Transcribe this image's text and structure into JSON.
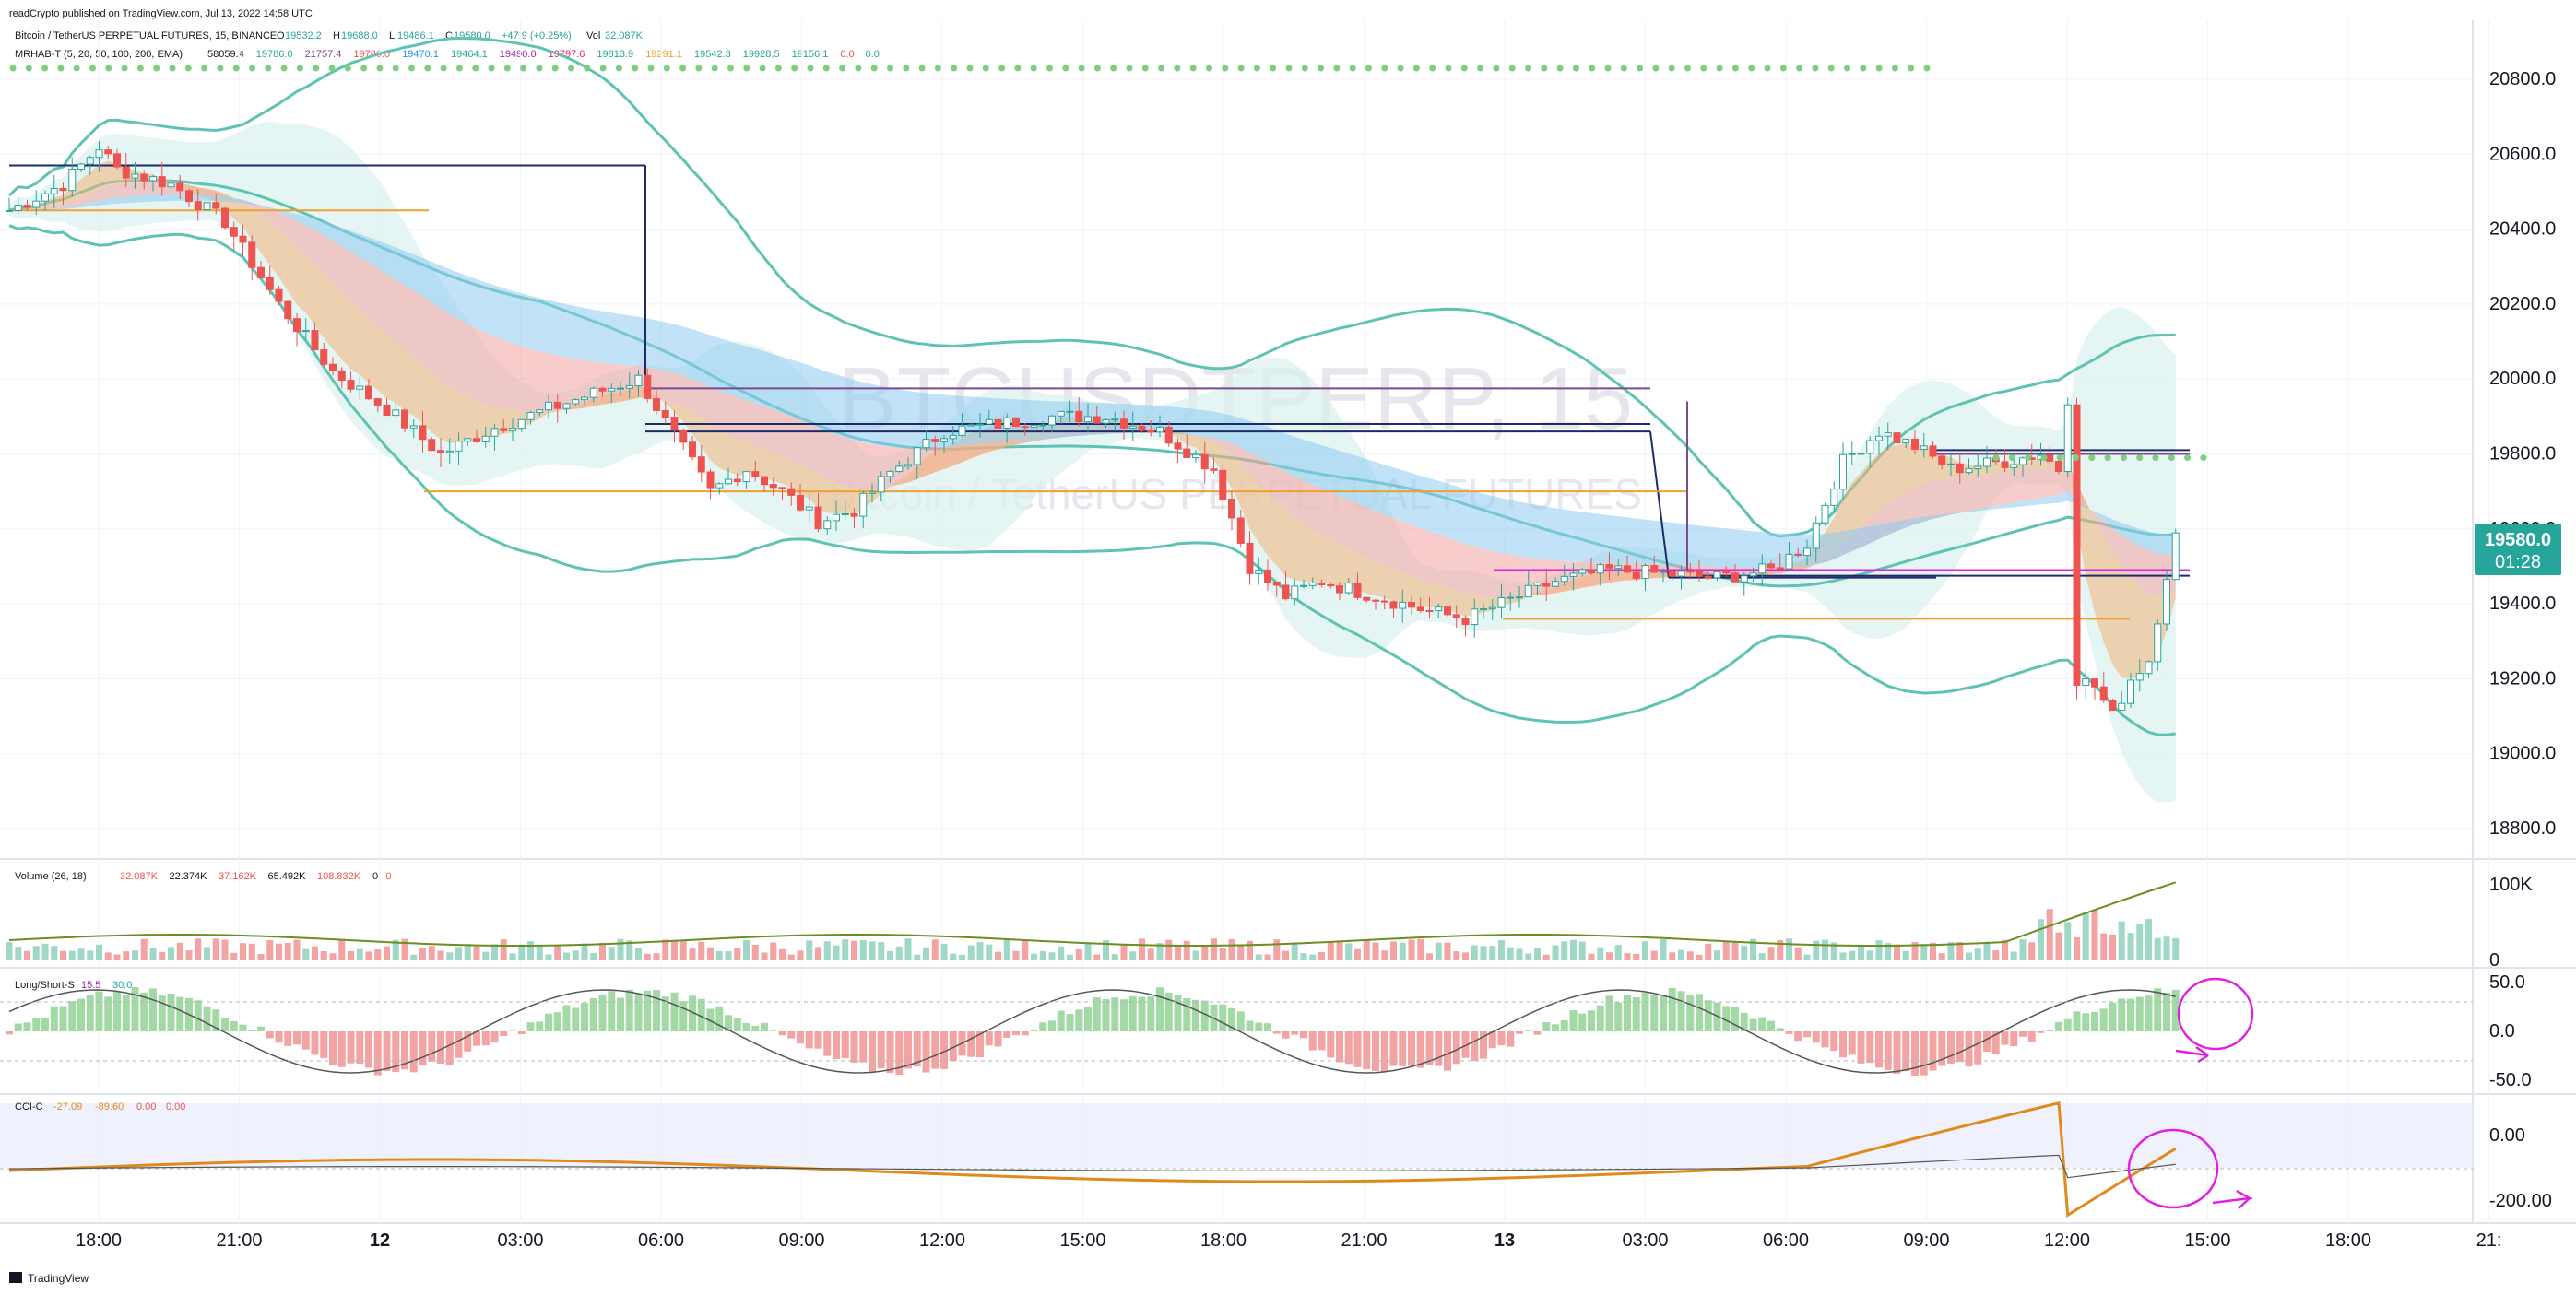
{
  "header": {
    "published": "readCrypto published on TradingView.com, Jul 13, 2022 14:58 UTC",
    "symbol_line": "Bitcoin / TetherUS PERPETUAL FUTURES, 15, BINANCE",
    "ohlc": [
      {
        "k": "O",
        "v": "19532.2"
      },
      {
        "k": "H",
        "v": "19688.0"
      },
      {
        "k": "L",
        "v": "19486.1"
      },
      {
        "k": "C",
        "v": "19580.0"
      }
    ],
    "change": "+47.9 (+0.25%)",
    "vol_label": "Vol",
    "vol_value": "32.087K",
    "ema_label": "MRHAB-T (5, 20, 50, 100, 200, EMA)",
    "ema_values": [
      "58059.4",
      "19786.0",
      "21757.4",
      "19786.0",
      "19470.1",
      "19464.1",
      "19490.0",
      "19797.6",
      "19813.9",
      "19291.1",
      "19542.3",
      "19928.5",
      "19156.1",
      "0.0",
      "0.0"
    ]
  },
  "watermark": {
    "symbol": "BTCUSDTPERP, 15",
    "name": "Bitcoin / TetherUS PERPETUAL FUTURES"
  },
  "colors": {
    "up": "#26a69a",
    "down": "#ef5350",
    "band": "#5fc3b4",
    "band_fill": "#d8f1ee",
    "ribbon_red": "#f4a3a3",
    "ribbon_blue": "#8ecbf0",
    "ribbon_cyan": "#7fdde0",
    "ribbon_orange": "#f2b27a",
    "green_dots": "#7dcf7d",
    "purple": "#7b4a8f",
    "navy": "#1f2a6b",
    "orange": "#f0a030",
    "magenta": "#e020e0",
    "price_label": "#26a69a",
    "grid": "#f0f3fa",
    "axis_text": "#131722"
  },
  "price_axis": {
    "ticks": [
      "20800.0",
      "20600.0",
      "20400.0",
      "20200.0",
      "20000.0",
      "19800.0",
      "19600.0",
      "19400.0",
      "19200.0",
      "19000.0",
      "18800.0"
    ],
    "last_price": "19580.0",
    "countdown": "01:28"
  },
  "volume_pane": {
    "label": "Volume (26, 18)",
    "values": [
      "32.087K",
      "22.374K",
      "37.162K",
      "65.492K",
      "108.832K",
      "0",
      "0"
    ],
    "ticks": [
      "100K",
      "0"
    ]
  },
  "ls_pane": {
    "label": "Long/Short-S",
    "values": [
      "15.5",
      "30.0"
    ],
    "ticks": [
      "50.0",
      "0.0",
      "-50.0"
    ]
  },
  "cci_pane": {
    "label": "CCI-C",
    "values": [
      "-27.09",
      "-89.60",
      "0.00",
      "0.00"
    ],
    "ticks": [
      "0.00",
      "-200.00"
    ]
  },
  "time_axis": {
    "labels": [
      "18:00",
      "21:00",
      "12",
      "03:00",
      "06:00",
      "09:00",
      "12:00",
      "15:00",
      "18:00",
      "21:00",
      "13",
      "03:00",
      "06:00",
      "09:00",
      "12:00",
      "15:00",
      "18:00",
      "21:"
    ],
    "bold": [
      "12",
      "13"
    ]
  },
  "footer": {
    "brand": "TradingView"
  },
  "chart_data": {
    "type": "candlestick",
    "title": "Bitcoin / TetherUS PERPETUAL FUTURES, 15, BINANCE",
    "ylim": [
      18700,
      20900
    ],
    "xlabel": "",
    "ylabel": "",
    "anchors": [
      {
        "t": 0,
        "p": 20450
      },
      {
        "t": 6,
        "p": 20520
      },
      {
        "t": 10,
        "p": 20620
      },
      {
        "t": 12,
        "p": 20560
      },
      {
        "t": 18,
        "p": 20520
      },
      {
        "t": 24,
        "p": 20420
      },
      {
        "t": 30,
        "p": 20200
      },
      {
        "t": 36,
        "p": 20020
      },
      {
        "t": 42,
        "p": 19920
      },
      {
        "t": 48,
        "p": 19800
      },
      {
        "t": 54,
        "p": 19870
      },
      {
        "t": 60,
        "p": 19920
      },
      {
        "t": 66,
        "p": 19970
      },
      {
        "t": 70,
        "p": 20000
      },
      {
        "t": 74,
        "p": 19850
      },
      {
        "t": 78,
        "p": 19700
      },
      {
        "t": 82,
        "p": 19760
      },
      {
        "t": 86,
        "p": 19700
      },
      {
        "t": 90,
        "p": 19620
      },
      {
        "t": 94,
        "p": 19650
      },
      {
        "t": 98,
        "p": 19750
      },
      {
        "t": 104,
        "p": 19860
      },
      {
        "t": 110,
        "p": 19880
      },
      {
        "t": 116,
        "p": 19900
      },
      {
        "t": 122,
        "p": 19900
      },
      {
        "t": 128,
        "p": 19860
      },
      {
        "t": 134,
        "p": 19760
      },
      {
        "t": 138,
        "p": 19500
      },
      {
        "t": 142,
        "p": 19420
      },
      {
        "t": 146,
        "p": 19460
      },
      {
        "t": 152,
        "p": 19420
      },
      {
        "t": 158,
        "p": 19380
      },
      {
        "t": 162,
        "p": 19360
      },
      {
        "t": 166,
        "p": 19400
      },
      {
        "t": 172,
        "p": 19460
      },
      {
        "t": 178,
        "p": 19490
      },
      {
        "t": 184,
        "p": 19480
      },
      {
        "t": 190,
        "p": 19470
      },
      {
        "t": 196,
        "p": 19490
      },
      {
        "t": 200,
        "p": 19560
      },
      {
        "t": 204,
        "p": 19780
      },
      {
        "t": 208,
        "p": 19860
      },
      {
        "t": 212,
        "p": 19820
      },
      {
        "t": 216,
        "p": 19760
      },
      {
        "t": 222,
        "p": 19780
      },
      {
        "t": 226,
        "p": 19800
      },
      {
        "t": 228,
        "p": 19760
      },
      {
        "t": 229,
        "p": 19950
      },
      {
        "t": 230,
        "p": 19200
      },
      {
        "t": 232,
        "p": 19180
      },
      {
        "t": 234,
        "p": 19100
      },
      {
        "t": 236,
        "p": 19200
      },
      {
        "t": 238,
        "p": 19250
      },
      {
        "t": 240,
        "p": 19480
      },
      {
        "t": 241,
        "p": 19580
      }
    ]
  }
}
